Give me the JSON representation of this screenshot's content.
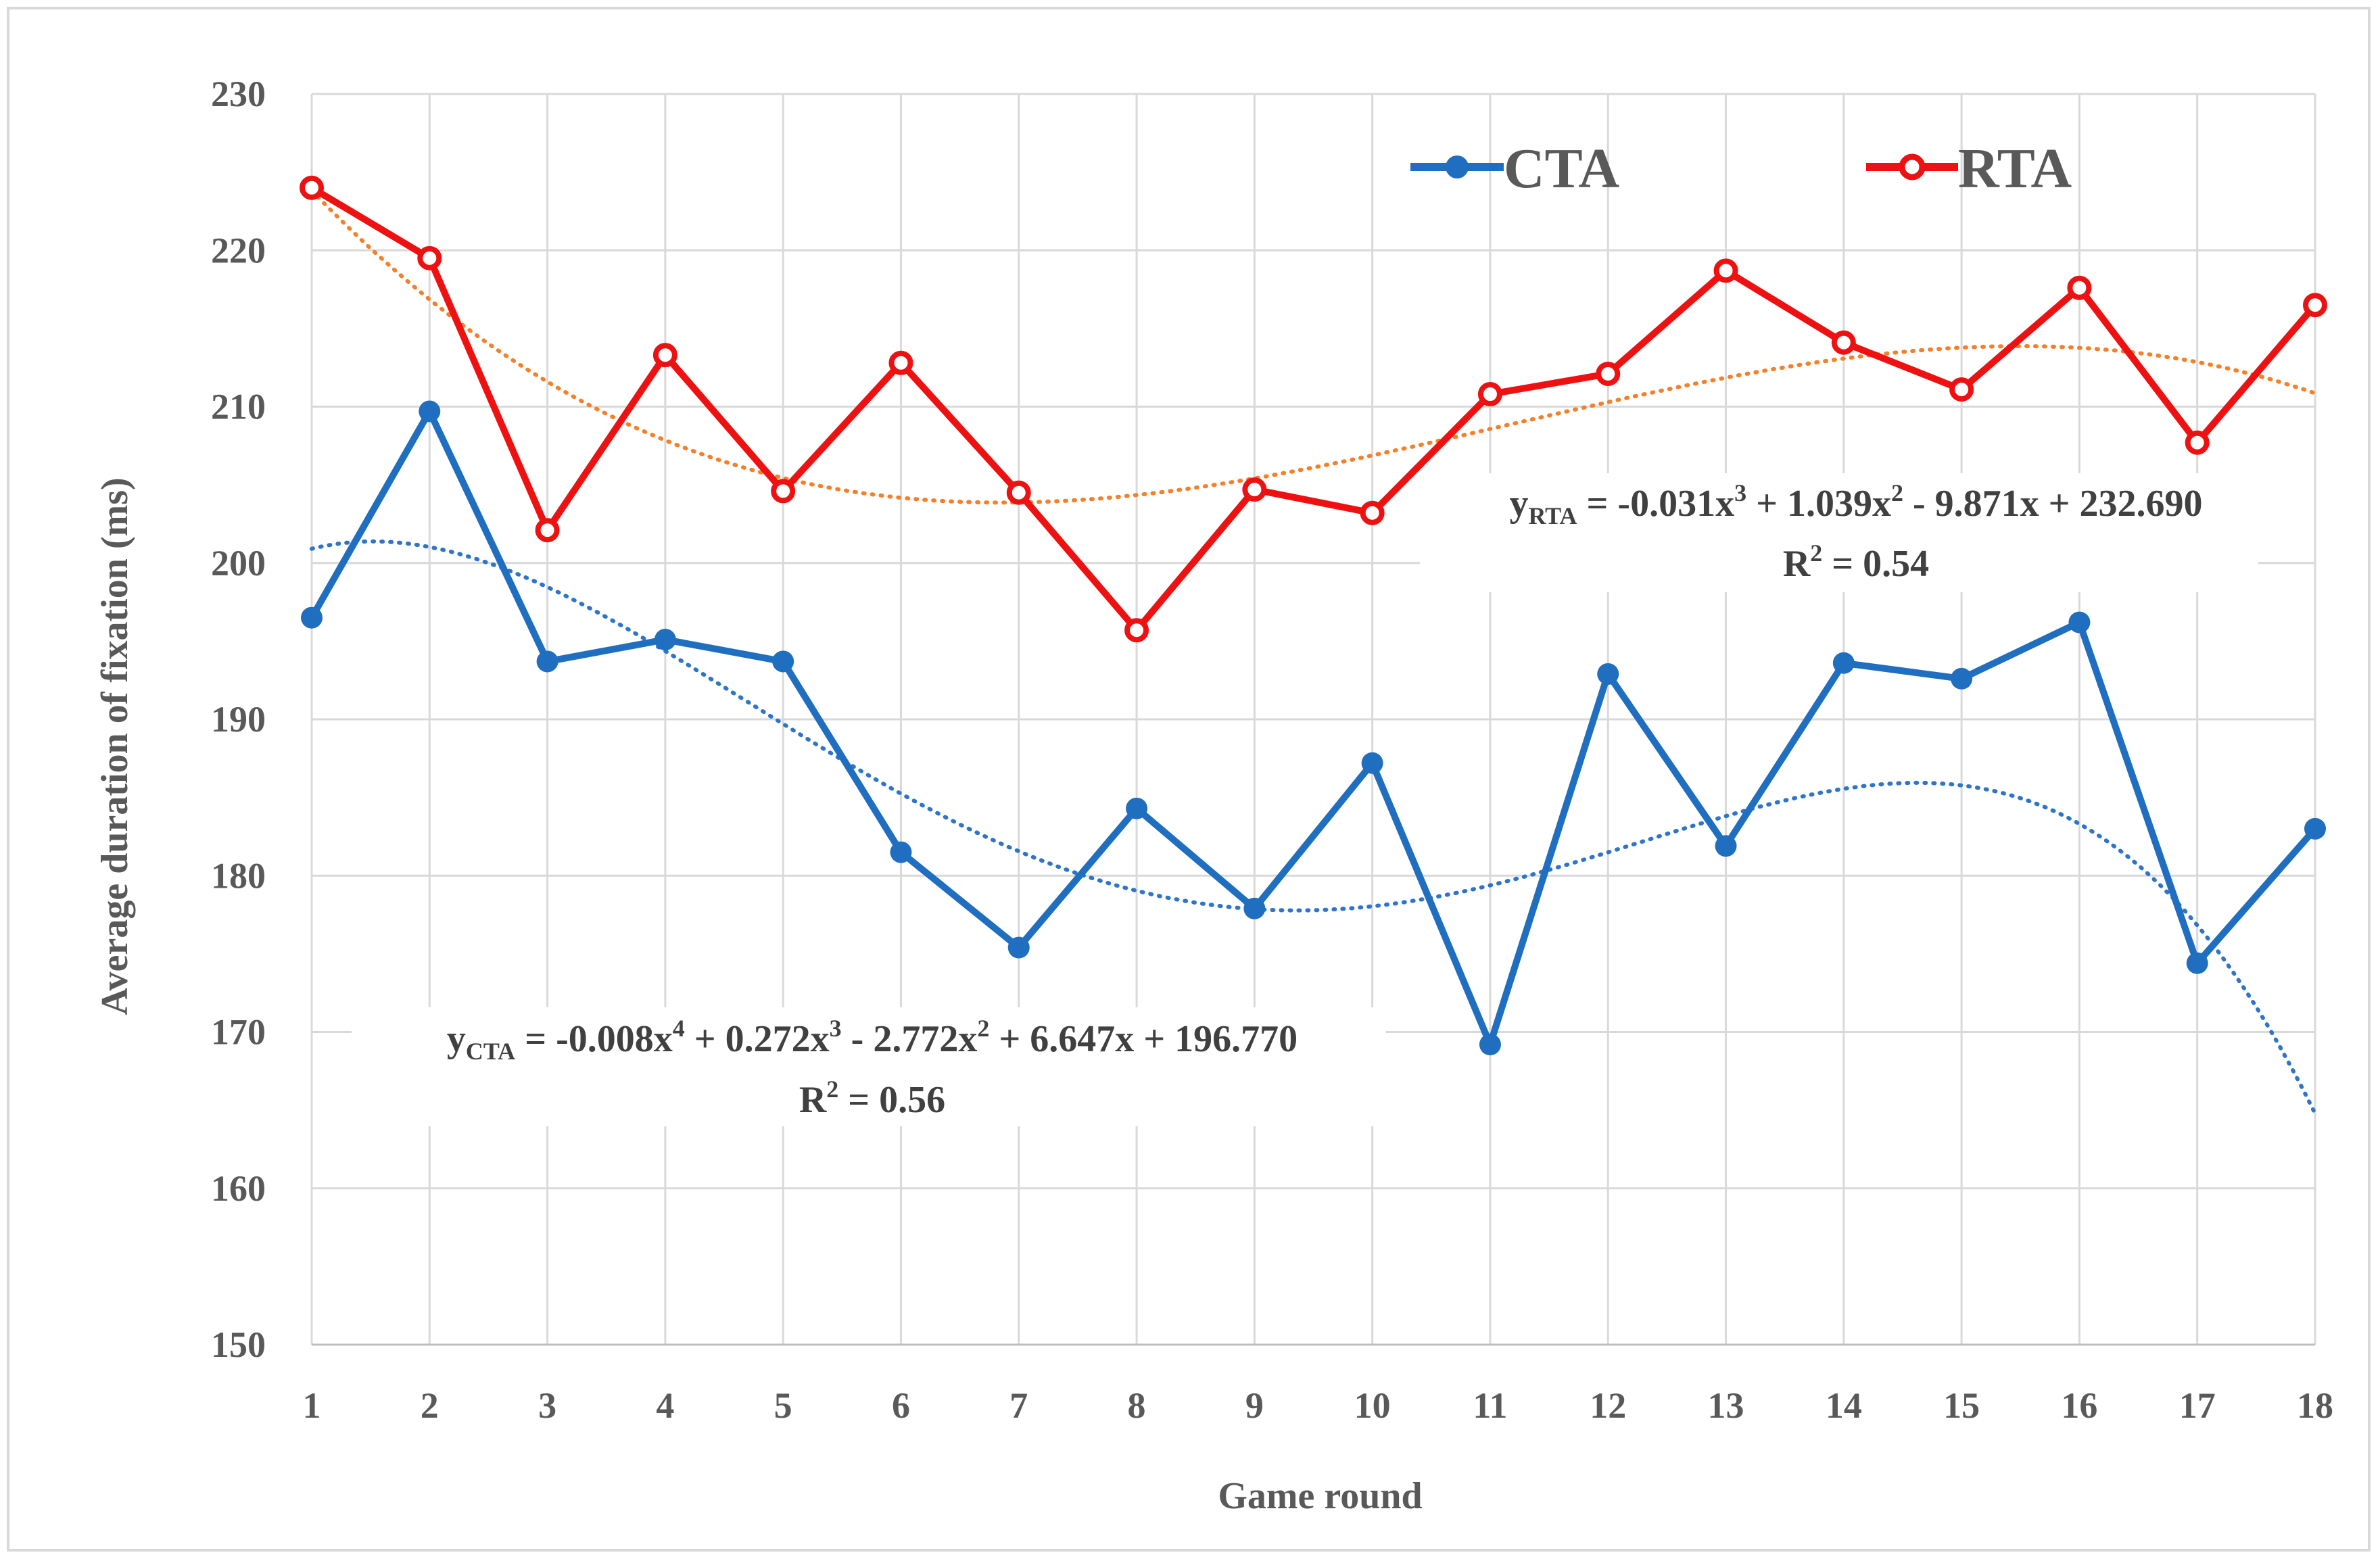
{
  "chart_data": {
    "type": "line",
    "title": "",
    "xlabel": "Game round",
    "ylabel": "Average duration of  fixation (ms)",
    "ylim": [
      150,
      230
    ],
    "yticks": [
      150,
      160,
      170,
      180,
      190,
      200,
      210,
      220,
      230
    ],
    "categories": [
      "1",
      "2",
      "3",
      "4",
      "5",
      "6",
      "7",
      "8",
      "9",
      "10",
      "11",
      "12",
      "13",
      "14",
      "15",
      "16",
      "17",
      "18"
    ],
    "grid": true,
    "legend_position": "top-right",
    "series": [
      {
        "name": "CTA",
        "color": "#1f6ec0",
        "trend_color": "#2e75c9",
        "values": [
          196.5,
          209.7,
          193.7,
          195.1,
          193.7,
          181.5,
          175.4,
          184.3,
          177.9,
          187.2,
          169.2,
          192.9,
          181.9,
          193.6,
          192.6,
          196.2,
          174.4,
          183.0
        ],
        "trendline": {
          "type": "polynomial",
          "coefficients": [
            196.77,
            6.647,
            -2.772,
            0.272,
            -0.008
          ]
        },
        "equation": {
          "y": "y",
          "sub": "CTA",
          "lhs_rest": " = -0.008x",
          "terms": [
            {
              "text": " = -0.008x"
            },
            {
              "sup": "4"
            },
            {
              "text": " + 0.272x"
            },
            {
              "sup": "3"
            },
            {
              "text": " - 2.772x"
            },
            {
              "sup": "2"
            },
            {
              "text": " + 6.647x + 196.770"
            }
          ],
          "r2_prefix": "R",
          "r2_sup": "2",
          "r2_value": " = 0.56"
        }
      },
      {
        "name": "RTA",
        "color": "#ee1111",
        "trend_color": "#f4812a",
        "values": [
          224.0,
          219.5,
          202.1,
          213.3,
          204.6,
          212.8,
          204.5,
          195.7,
          204.7,
          203.2,
          210.8,
          212.1,
          218.7,
          214.1,
          211.1,
          217.6,
          207.7,
          216.5
        ],
        "trendline": {
          "type": "polynomial",
          "coefficients": [
            232.69,
            -9.871,
            1.039,
            -0.031
          ]
        },
        "equation": {
          "y": "y",
          "sub": "RTA",
          "terms": [
            {
              "text": " = -0.031x"
            },
            {
              "sup": "3"
            },
            {
              "text": " + 1.039x"
            },
            {
              "sup": "2"
            },
            {
              "text": " - 9.871x + 232.690"
            }
          ],
          "r2_prefix": "R",
          "r2_sup": "2",
          "r2_value": " = 0.54"
        }
      }
    ]
  }
}
